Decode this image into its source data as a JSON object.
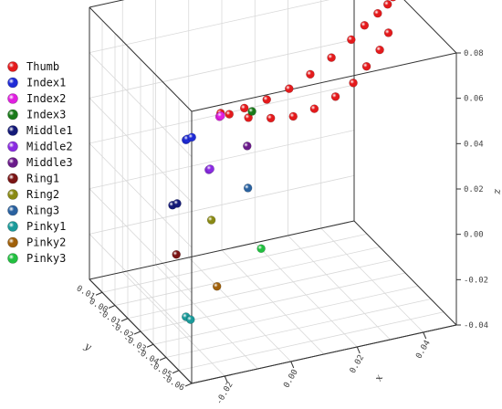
{
  "chart_data": {
    "type": "scatter",
    "title": "",
    "xlabel": "x",
    "ylabel": "y",
    "zlabel": "z",
    "xlim": [
      -0.03,
      0.05
    ],
    "ylim": [
      -0.06,
      0.02
    ],
    "zlim": [
      -0.04,
      0.08
    ],
    "x_ticks": [
      "-0.02",
      "0.00",
      "0.02",
      "0.04"
    ],
    "y_ticks": [
      "0.01",
      "0.00",
      "-0.01",
      "-0.02",
      "-0.03",
      "-0.04",
      "-0.05",
      "-0.06"
    ],
    "z_ticks": [
      "0.08",
      "0.06",
      "0.04",
      "0.02",
      "0.00",
      "-0.02",
      "-0.04"
    ],
    "grid": true,
    "legend_position": "left",
    "series": [
      {
        "name": "Thumb",
        "color": "#e41a1c",
        "x": [
          0.0,
          0.006,
          0.012,
          0.018,
          0.024,
          0.03,
          0.036,
          0.04,
          0.044,
          0.047,
          0.049,
          0.05,
          0.003,
          0.008,
          0.014,
          0.02,
          0.026,
          0.032,
          0.037,
          0.041,
          0.045,
          0.048
        ],
        "y": [
          -0.005,
          -0.008,
          -0.01,
          -0.012,
          -0.013,
          -0.014,
          -0.014,
          -0.014,
          -0.014,
          -0.014,
          -0.013,
          -0.012,
          -0.004,
          -0.006,
          -0.008,
          -0.01,
          -0.011,
          -0.012,
          -0.013,
          -0.013,
          -0.013,
          -0.012
        ],
        "z": [
          0.038,
          0.04,
          0.043,
          0.047,
          0.052,
          0.058,
          0.064,
          0.069,
          0.073,
          0.076,
          0.078,
          0.079,
          0.036,
          0.034,
          0.033,
          0.033,
          0.035,
          0.039,
          0.044,
          0.05,
          0.056,
          0.062
        ]
      },
      {
        "name": "Index1",
        "color": "#1f2bd6",
        "x": [
          -0.024,
          -0.024,
          -0.023
        ],
        "y": [
          -0.04,
          -0.041,
          -0.042
        ],
        "z": [
          0.054,
          0.055,
          0.056
        ]
      },
      {
        "name": "Index2",
        "color": "#e020e0",
        "x": [
          -0.01,
          -0.01
        ],
        "y": [
          -0.03,
          -0.031
        ],
        "z": [
          0.054,
          0.055
        ]
      },
      {
        "name": "Index3",
        "color": "#1a7a1a",
        "x": [
          0.006
        ],
        "y": [
          -0.014
        ],
        "z": [
          0.042
        ]
      },
      {
        "name": "Middle1",
        "color": "#141a78",
        "x": [
          -0.03,
          -0.029
        ],
        "y": [
          -0.045,
          -0.046
        ],
        "z": [
          0.03,
          0.031
        ]
      },
      {
        "name": "Middle2",
        "color": "#8a2be2",
        "x": [
          -0.014,
          -0.014
        ],
        "y": [
          -0.032,
          -0.033
        ],
        "z": [
          0.033,
          0.034
        ]
      },
      {
        "name": "Middle3",
        "color": "#6a1a8a",
        "x": [
          0.003
        ],
        "y": [
          -0.018
        ],
        "z": [
          0.03
        ]
      },
      {
        "name": "Ring1",
        "color": "#7a1414",
        "x": [
          -0.03
        ],
        "y": [
          -0.048
        ],
        "z": [
          0.01
        ]
      },
      {
        "name": "Ring2",
        "color": "#8a8a14",
        "x": [
          -0.014
        ],
        "y": [
          -0.034
        ],
        "z": [
          0.012
        ]
      },
      {
        "name": "Ring3",
        "color": "#2a62a0",
        "x": [
          0.004
        ],
        "y": [
          -0.016
        ],
        "z": [
          0.01
        ]
      },
      {
        "name": "Pinky1",
        "color": "#1a9a9a",
        "x": [
          -0.024,
          -0.023
        ],
        "y": [
          -0.04,
          -0.041
        ],
        "z": [
          -0.024,
          -0.025
        ]
      },
      {
        "name": "Pinky2",
        "color": "#a0600a",
        "x": [
          -0.01
        ],
        "y": [
          -0.028
        ],
        "z": [
          -0.022
        ]
      },
      {
        "name": "Pinky3",
        "color": "#22c040",
        "x": [
          0.008
        ],
        "y": [
          -0.016
        ],
        "z": [
          -0.018
        ]
      }
    ]
  }
}
